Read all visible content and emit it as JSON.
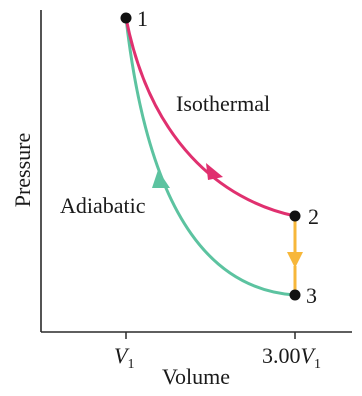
{
  "axes": {
    "x_title": "Volume",
    "y_title": "Pressure",
    "x_ticks": [
      {
        "prefix": "",
        "symbol": "V",
        "subscript": "1"
      },
      {
        "prefix": "3.00",
        "symbol": "V",
        "subscript": "1"
      }
    ]
  },
  "points": [
    {
      "label": "1"
    },
    {
      "label": "2"
    },
    {
      "label": "3"
    }
  ],
  "curves": {
    "isothermal": {
      "label": "Isothermal",
      "color": "#e0306f"
    },
    "adiabatic": {
      "label": "Adiabatic",
      "color": "#5cc3a0"
    },
    "isochoric": {
      "color": "#f7b73a"
    }
  },
  "colors": {
    "axis": "#2a2a2a",
    "point": "#111111"
  }
}
